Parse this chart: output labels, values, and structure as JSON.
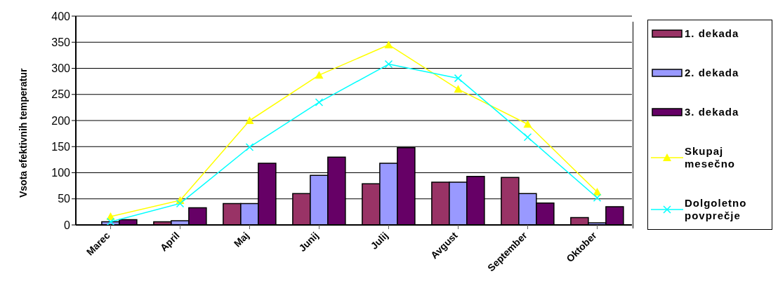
{
  "chart_data": {
    "type": "bar",
    "ylabel": "Vsota efektivnih temperatur",
    "categories": [
      "Marec",
      "April",
      "Maj",
      "Junij",
      "Julij",
      "Avgust",
      "September",
      "Oktober"
    ],
    "series": [
      {
        "name": "1. dekada",
        "color": "#993366",
        "values": [
          0,
          6,
          41,
          60,
          79,
          82,
          91,
          14
        ]
      },
      {
        "name": "2. dekada",
        "color": "#9999ff",
        "values": [
          6,
          8,
          41,
          95,
          118,
          82,
          60,
          4
        ]
      },
      {
        "name": "3. dekada",
        "color": "#660066",
        "values": [
          10,
          33,
          118,
          130,
          148,
          93,
          42,
          35
        ]
      },
      {
        "name": "Skupaj mesečno",
        "type": "line",
        "color": "#ffff00",
        "marker": "triangle",
        "values": [
          16,
          47,
          200,
          287,
          345,
          260,
          193,
          63
        ]
      },
      {
        "name": "Dolgoletno povprečje",
        "type": "line",
        "color": "#00ffff",
        "marker": "cross",
        "values": [
          6,
          41,
          149,
          235,
          308,
          281,
          168,
          52
        ]
      }
    ],
    "ylim": [
      0,
      400
    ],
    "yticks": [
      0,
      50,
      100,
      150,
      200,
      250,
      300,
      350,
      400
    ],
    "grid": "y",
    "legend": "right"
  }
}
